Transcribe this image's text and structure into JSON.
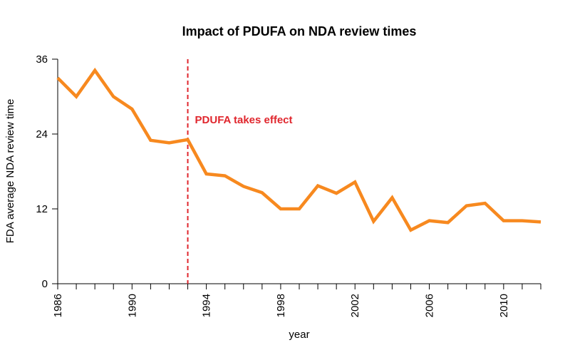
{
  "chart_data": {
    "type": "line",
    "title": "Impact of PDUFA on NDA review times",
    "xlabel": "year",
    "ylabel": "FDA average NDA review time",
    "xlim": [
      1986,
      2012
    ],
    "ylim": [
      0,
      36
    ],
    "y_ticks": [
      "0",
      "12",
      "24",
      "36"
    ],
    "x_ticks": [
      "1986",
      "1990",
      "1994",
      "1998",
      "2002",
      "2006",
      "2010"
    ],
    "x_tick_marks": [
      1986,
      1987,
      1988,
      1989,
      1990,
      1991,
      1992,
      1993,
      1994,
      1995,
      1996,
      1997,
      1998,
      1999,
      2000,
      2001,
      2002,
      2003,
      2004,
      2005,
      2006,
      2007,
      2008,
      2009,
      2010,
      2011,
      2012
    ],
    "grid": false,
    "series": [
      {
        "color": "#f7891f",
        "x": [
          1986,
          1987,
          1988,
          1989,
          1990,
          1991,
          1992,
          1993,
          1994,
          1995,
          1996,
          1997,
          1998,
          1999,
          2000,
          2001,
          2002,
          2003,
          2004,
          2005,
          2006,
          2007,
          2008,
          2009,
          2010,
          2011,
          2012
        ],
        "values": [
          33.0,
          30.0,
          34.2,
          30.0,
          28.0,
          23.0,
          22.6,
          23.1,
          17.6,
          17.3,
          15.6,
          14.6,
          12.0,
          12.0,
          15.7,
          14.5,
          16.3,
          10.0,
          13.8,
          8.6,
          10.1,
          9.8,
          12.5,
          12.9,
          10.1,
          10.1,
          9.9
        ]
      }
    ],
    "annotations": [
      {
        "type": "vline",
        "x": 1993,
        "color": "#e0262d",
        "label": "PDUFA takes effect"
      }
    ]
  }
}
